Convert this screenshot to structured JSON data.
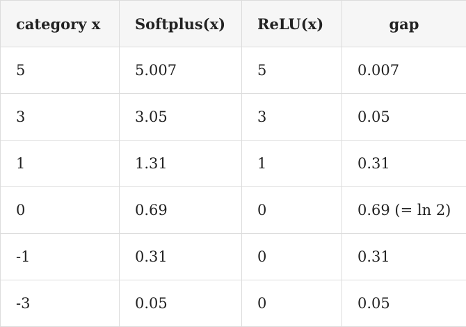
{
  "table": {
    "header": [
      "category x",
      "Softplus(x)",
      "ReLU(x)",
      "gap"
    ],
    "rows": [
      [
        "5",
        "5.007",
        "5",
        "0.007"
      ],
      [
        "3",
        "3.05",
        "3",
        "0.05"
      ],
      [
        "1",
        "1.31",
        "1",
        "0.31"
      ],
      [
        "0",
        "0.69",
        "0",
        "0.69 (= ln 2)"
      ],
      [
        "-1",
        "0.31",
        "0",
        "0.31"
      ],
      [
        "-3",
        "0.05",
        "0",
        "0.05"
      ]
    ]
  }
}
